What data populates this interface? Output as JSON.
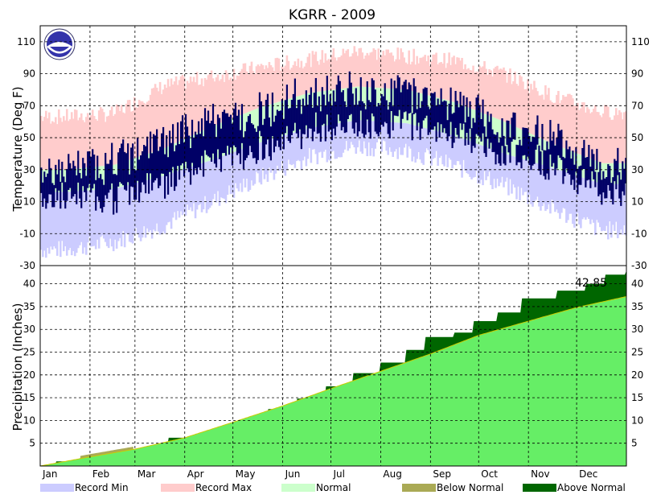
{
  "chart_data": {
    "type": "area",
    "title": "KGRR - 2009",
    "months": [
      "Jan",
      "Feb",
      "Mar",
      "Apr",
      "May",
      "Jun",
      "Jul",
      "Aug",
      "Sep",
      "Oct",
      "Nov",
      "Dec"
    ],
    "temperature": {
      "ylabel": "Temperature (Deg F)",
      "ylim": [
        -30,
        120
      ],
      "yticks": [
        -30,
        -10,
        10,
        30,
        50,
        70,
        90,
        110
      ],
      "record_min_by_month": [
        -20,
        -15,
        -5,
        10,
        25,
        38,
        45,
        42,
        32,
        20,
        5,
        -8
      ],
      "record_max_by_month": [
        63,
        65,
        82,
        88,
        94,
        99,
        104,
        101,
        98,
        90,
        76,
        66
      ],
      "normal_low_by_month": [
        16,
        18,
        26,
        36,
        47,
        56,
        61,
        59,
        51,
        40,
        31,
        21
      ],
      "normal_high_by_month": [
        30,
        33,
        43,
        57,
        69,
        78,
        82,
        80,
        72,
        60,
        46,
        34
      ],
      "daily_range_mean_by_month": [
        [
          12,
          29
        ],
        [
          13,
          35
        ],
        [
          22,
          48
        ],
        [
          35,
          60
        ],
        [
          44,
          66
        ],
        [
          55,
          77
        ],
        [
          58,
          80
        ],
        [
          60,
          79
        ],
        [
          52,
          72
        ],
        [
          40,
          56
        ],
        [
          33,
          52
        ],
        [
          18,
          33
        ]
      ]
    },
    "precipitation": {
      "ylabel": "Precipitation (Inches)",
      "ylim": [
        0,
        44
      ],
      "yticks": [
        5,
        10,
        15,
        20,
        25,
        30,
        35,
        40
      ],
      "annotation": "42.85",
      "normal_cumulative": [
        {
          "day": 0,
          "value": 0
        },
        {
          "day": 31,
          "value": 2.0
        },
        {
          "day": 59,
          "value": 3.7
        },
        {
          "day": 90,
          "value": 6.2
        },
        {
          "day": 120,
          "value": 9.6
        },
        {
          "day": 151,
          "value": 13.2
        },
        {
          "day": 181,
          "value": 17.0
        },
        {
          "day": 212,
          "value": 20.8
        },
        {
          "day": 243,
          "value": 24.6
        },
        {
          "day": 273,
          "value": 28.7
        },
        {
          "day": 304,
          "value": 31.8
        },
        {
          "day": 334,
          "value": 34.8
        },
        {
          "day": 365,
          "value": 37.2
        }
      ],
      "observed_cumulative": [
        {
          "day": 0,
          "value": 0
        },
        {
          "day": 10,
          "value": 1.0
        },
        {
          "day": 25,
          "value": 1.8
        },
        {
          "day": 40,
          "value": 2.6
        },
        {
          "day": 55,
          "value": 3.3
        },
        {
          "day": 68,
          "value": 4.2
        },
        {
          "day": 80,
          "value": 6.2
        },
        {
          "day": 100,
          "value": 7.0
        },
        {
          "day": 115,
          "value": 8.6
        },
        {
          "day": 128,
          "value": 10.3
        },
        {
          "day": 142,
          "value": 12.5
        },
        {
          "day": 160,
          "value": 14.8
        },
        {
          "day": 178,
          "value": 17.5
        },
        {
          "day": 195,
          "value": 20.4
        },
        {
          "day": 212,
          "value": 22.7
        },
        {
          "day": 228,
          "value": 25.5
        },
        {
          "day": 240,
          "value": 28.3
        },
        {
          "day": 258,
          "value": 29.3
        },
        {
          "day": 270,
          "value": 31.8
        },
        {
          "day": 285,
          "value": 33.7
        },
        {
          "day": 300,
          "value": 36.8
        },
        {
          "day": 322,
          "value": 38.5
        },
        {
          "day": 340,
          "value": 40.0
        },
        {
          "day": 352,
          "value": 42.0
        },
        {
          "day": 365,
          "value": 42.85
        }
      ]
    },
    "legend": [
      {
        "label": "Record Min",
        "color": "#ccccff"
      },
      {
        "label": "Record Max",
        "color": "#ffcccc"
      },
      {
        "label": "Normal",
        "color": "#ccffcc"
      },
      {
        "label": "Below Normal",
        "color": "#aaaa55"
      },
      {
        "label": "Above Normal",
        "color": "#006600"
      }
    ],
    "colors": {
      "observed_range": "#000066",
      "precip_normal": "#66ee66",
      "precip_above": "#006600",
      "precip_below": "#aaaa55"
    }
  }
}
